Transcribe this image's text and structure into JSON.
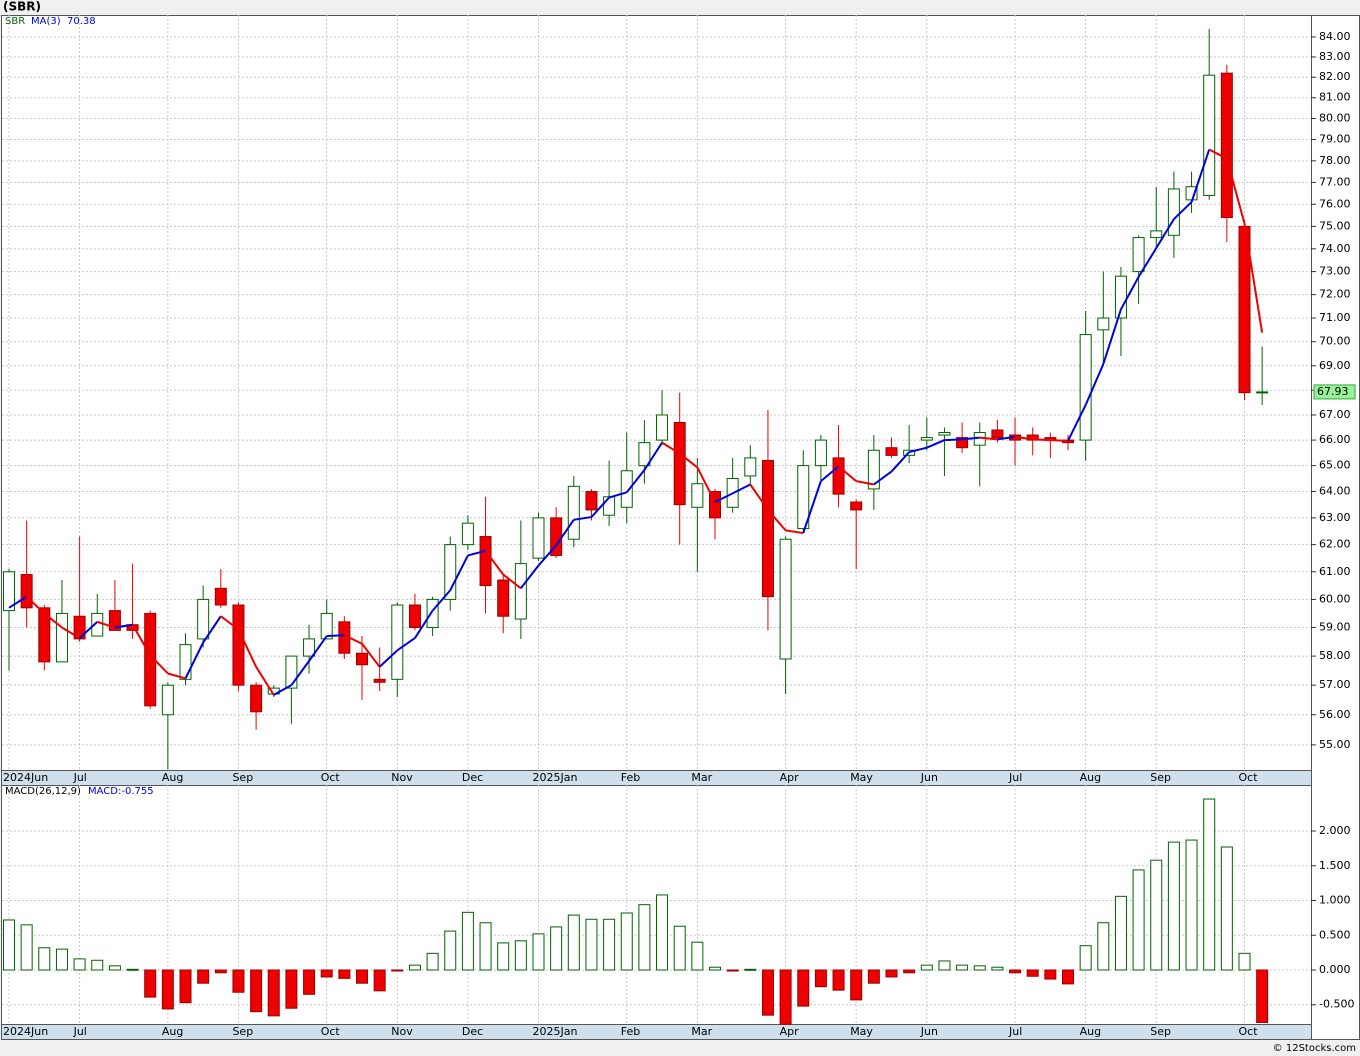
{
  "chart_data": [
    {
      "type": "candlestick",
      "title": "(SBR)",
      "categories": [
        "2024Jun",
        null,
        null,
        null,
        "Jul",
        null,
        null,
        null,
        null,
        "Aug",
        null,
        null,
        null,
        "Sep",
        null,
        null,
        null,
        null,
        "Oct",
        null,
        null,
        null,
        "Nov",
        null,
        null,
        null,
        "Dec",
        null,
        null,
        null,
        "2025Jan",
        null,
        null,
        null,
        null,
        "Feb",
        null,
        null,
        null,
        "Mar",
        null,
        null,
        null,
        null,
        "Apr",
        null,
        null,
        null,
        "May",
        null,
        null,
        null,
        "Jun",
        null,
        null,
        null,
        null,
        "Jul",
        null,
        null,
        null,
        "Aug",
        null,
        null,
        null,
        "Sep",
        null,
        null,
        null,
        null,
        "Oct",
        null
      ],
      "series": [
        {
          "name": "SBR",
          "up_color": "#006400",
          "down_color": "#ee0000",
          "open": [
            59.6,
            60.9,
            59.7,
            57.8,
            59.4,
            58.7,
            59.6,
            59.1,
            59.5,
            56.0,
            57.2,
            58.6,
            60.4,
            59.8,
            57.0,
            56.7,
            56.9,
            58.0,
            58.6,
            59.2,
            58.1,
            57.2,
            57.2,
            59.8,
            59.0,
            60.0,
            62.0,
            62.3,
            60.7,
            59.3,
            61.5,
            63.0,
            62.2,
            64.0,
            63.1,
            63.4,
            65.0,
            66.0,
            66.7,
            63.4,
            64.0,
            63.4,
            64.6,
            65.2,
            57.9,
            62.6,
            65.0,
            65.3,
            63.6,
            64.1,
            65.7,
            65.4,
            66.0,
            66.2,
            66.1,
            65.8,
            66.4,
            66.2,
            66.2,
            66.1,
            66.0,
            66.0,
            70.5,
            71.0,
            73.0,
            74.5,
            74.6,
            76.2,
            76.4,
            82.2,
            75.0,
            67.9
          ],
          "high": [
            61.1,
            62.9,
            59.8,
            60.7,
            62.3,
            60.2,
            60.7,
            61.3,
            59.6,
            57.1,
            58.8,
            60.5,
            61.1,
            59.9,
            57.1,
            57.0,
            58.0,
            59.1,
            60.0,
            59.4,
            58.7,
            58.3,
            59.9,
            60.2,
            60.1,
            62.3,
            63.1,
            63.8,
            60.9,
            62.9,
            63.2,
            63.4,
            64.6,
            64.1,
            65.2,
            66.3,
            66.8,
            68.0,
            67.9,
            65.3,
            64.1,
            65.3,
            65.8,
            67.2,
            62.3,
            65.6,
            66.2,
            66.6,
            63.7,
            66.2,
            66.1,
            66.6,
            66.9,
            66.5,
            66.7,
            66.7,
            66.8,
            66.9,
            66.5,
            66.3,
            66.2,
            71.3,
            73.0,
            73.2,
            74.6,
            76.8,
            77.5,
            77.5,
            84.4,
            82.6,
            75.3,
            69.8
          ],
          "low": [
            57.5,
            59.0,
            57.5,
            57.8,
            58.5,
            58.7,
            58.9,
            58.6,
            56.2,
            54.2,
            57.0,
            58.3,
            59.7,
            56.8,
            55.5,
            56.6,
            55.7,
            57.4,
            58.6,
            57.9,
            56.5,
            56.8,
            56.6,
            58.9,
            58.7,
            59.6,
            61.8,
            59.5,
            58.8,
            58.6,
            61.4,
            61.5,
            61.9,
            62.9,
            62.7,
            62.8,
            64.3,
            65.8,
            62.0,
            61.0,
            62.2,
            63.2,
            64.2,
            58.9,
            56.7,
            62.5,
            64.4,
            63.4,
            61.1,
            63.3,
            65.3,
            65.1,
            65.6,
            64.6,
            65.5,
            64.2,
            65.9,
            65.0,
            65.4,
            65.3,
            65.6,
            65.2,
            69.0,
            69.4,
            71.6,
            74.0,
            73.6,
            75.6,
            76.2,
            74.3,
            67.6,
            67.4
          ],
          "close": [
            61.0,
            59.7,
            57.8,
            59.5,
            58.6,
            59.5,
            58.9,
            58.9,
            56.3,
            57.0,
            58.4,
            60.0,
            59.8,
            57.0,
            56.1,
            56.9,
            58.0,
            58.6,
            59.5,
            58.1,
            57.7,
            57.1,
            59.8,
            59.0,
            60.0,
            62.0,
            62.8,
            60.5,
            59.4,
            61.3,
            63.0,
            61.6,
            64.2,
            63.3,
            63.8,
            64.8,
            65.9,
            67.0,
            63.5,
            64.3,
            63.0,
            64.5,
            65.3,
            60.1,
            62.2,
            65.0,
            66.0,
            63.9,
            63.3,
            65.6,
            65.4,
            65.6,
            66.1,
            66.3,
            65.7,
            66.3,
            66.1,
            66.0,
            66.0,
            66.0,
            65.9,
            70.3,
            71.0,
            72.8,
            74.5,
            74.8,
            76.7,
            76.8,
            82.1,
            75.4,
            67.9,
            67.93
          ]
        }
      ],
      "ma": {
        "name": "MA(3)",
        "up_color": "#0000dd",
        "down_color": "#ee0000",
        "values": [
          59.7,
          60.1,
          59.5,
          59.0,
          58.63,
          59.2,
          59.0,
          59.1,
          58.03,
          57.4,
          57.23,
          58.47,
          59.4,
          58.93,
          57.63,
          56.67,
          57.0,
          57.83,
          58.7,
          58.73,
          58.43,
          57.63,
          58.2,
          58.63,
          59.6,
          60.33,
          61.6,
          61.77,
          60.9,
          60.4,
          61.23,
          61.97,
          62.93,
          63.03,
          63.77,
          63.97,
          64.83,
          65.9,
          65.47,
          64.93,
          63.6,
          63.93,
          64.27,
          63.3,
          62.53,
          62.43,
          64.4,
          64.97,
          64.4,
          64.27,
          64.77,
          65.53,
          65.7,
          66.0,
          66.03,
          66.1,
          66.03,
          66.13,
          66.03,
          66.0,
          65.97,
          67.4,
          69.07,
          71.37,
          72.77,
          74.03,
          75.33,
          76.1,
          78.53,
          78.1,
          75.13,
          70.38
        ]
      },
      "ylim": [
        54.18,
        85.11
      ],
      "log_scale": true,
      "grid": true,
      "yticks": [
        {
          "value": 55,
          "label": "55.00"
        },
        {
          "value": 56,
          "label": "56.00"
        },
        {
          "value": 57,
          "label": "57.00"
        },
        {
          "value": 58,
          "label": "58.00"
        },
        {
          "value": 59,
          "label": "59.00"
        },
        {
          "value": 60,
          "label": "60.00"
        },
        {
          "value": 61,
          "label": "61.00"
        },
        {
          "value": 62,
          "label": "62.00"
        },
        {
          "value": 63,
          "label": "63.00"
        },
        {
          "value": 64,
          "label": "64.00"
        },
        {
          "value": 65,
          "label": "65.00"
        },
        {
          "value": 66,
          "label": "66.00"
        },
        {
          "value": 67,
          "label": "67.00"
        },
        {
          "value": 68,
          "label": "68.00"
        },
        {
          "value": 69,
          "label": "69.00"
        },
        {
          "value": 70,
          "label": "70.00"
        },
        {
          "value": 71,
          "label": "71.00"
        },
        {
          "value": 72,
          "label": "72.00"
        },
        {
          "value": 73,
          "label": "73.00"
        },
        {
          "value": 74,
          "label": "74.00"
        },
        {
          "value": 75,
          "label": "75.00"
        },
        {
          "value": 76,
          "label": "76.00"
        },
        {
          "value": 77,
          "label": "77.00"
        },
        {
          "value": 78,
          "label": "78.00"
        },
        {
          "value": 79,
          "label": "79.00"
        },
        {
          "value": 80,
          "label": "80.00"
        },
        {
          "value": 81,
          "label": "81.00"
        },
        {
          "value": 82,
          "label": "82.00"
        },
        {
          "value": 83,
          "label": "83.00"
        },
        {
          "value": 84,
          "label": "84.00"
        }
      ]
    },
    {
      "type": "bar",
      "title": "MACD(26,12,9)",
      "last_label": "MACD:-0.755",
      "up_color": "#006400",
      "down_color": "#ee0000",
      "values": [
        0.72,
        0.65,
        0.32,
        0.3,
        0.16,
        0.14,
        0.06,
        0.01,
        -0.39,
        -0.56,
        -0.47,
        -0.19,
        -0.04,
        -0.32,
        -0.6,
        -0.66,
        -0.55,
        -0.35,
        -0.1,
        -0.12,
        -0.19,
        -0.3,
        -0.01,
        0.07,
        0.24,
        0.56,
        0.83,
        0.68,
        0.39,
        0.42,
        0.52,
        0.62,
        0.79,
        0.73,
        0.73,
        0.82,
        0.94,
        1.08,
        0.63,
        0.4,
        0.04,
        -0.01,
        0.01,
        -0.65,
        -0.78,
        -0.52,
        -0.24,
        -0.29,
        -0.43,
        -0.19,
        -0.1,
        -0.04,
        0.07,
        0.13,
        0.07,
        0.06,
        0.04,
        -0.04,
        -0.09,
        -0.13,
        -0.2,
        0.35,
        0.68,
        1.06,
        1.44,
        1.58,
        1.84,
        1.87,
        2.46,
        1.77,
        0.24,
        -0.755
      ],
      "ylim": [
        -0.777,
        2.662
      ],
      "grid": true,
      "yticks": [
        {
          "value": -0.5,
          "label": "-0.500"
        },
        {
          "value": 0,
          "label": "0.000"
        },
        {
          "value": 0.5,
          "label": "0.500"
        },
        {
          "value": 1,
          "label": "1.000"
        },
        {
          "value": 1.5,
          "label": "1.500"
        },
        {
          "value": 2,
          "label": "2.000"
        }
      ]
    }
  ],
  "footer": "© 12Stocks.com"
}
